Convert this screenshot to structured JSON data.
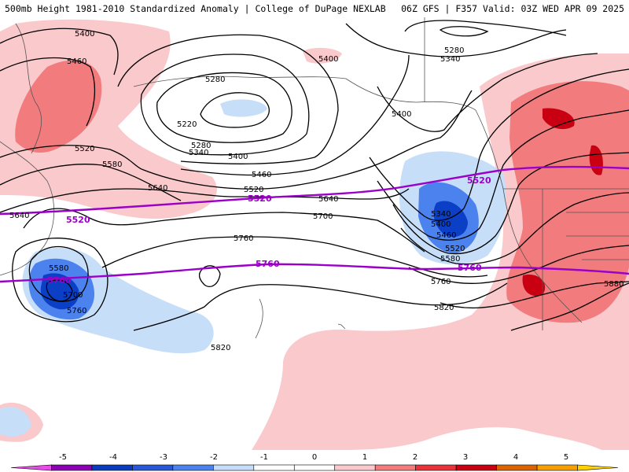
{
  "header": {
    "left": "500mb Height 1981-2010 Standardized Anomaly | College of DuPage NEXLAB",
    "right": "06Z GFS | F357 Valid: 03Z WED APR 09 2025"
  },
  "colors": {
    "background": "#ffffff",
    "contour": "#000000",
    "highlight_contour": "#9b00c8",
    "coastline": "#555555",
    "anom_pos_1": "#f9c9cc",
    "anom_pos_2": "#f27b7e",
    "anom_pos_3": "#c80012",
    "anom_neg_1": "#c7def9",
    "anom_neg_2": "#4c82ee",
    "anom_neg_3": "#0b3fc6"
  },
  "map": {
    "height_labels": [
      "5400",
      "5460",
      "5520",
      "5580",
      "5640",
      "5640",
      "5280",
      "5220",
      "5280",
      "5340",
      "5400",
      "5400",
      "5460",
      "5520",
      "5640",
      "5700",
      "5760",
      "5820",
      "5280",
      "5340",
      "5400",
      "5340",
      "5400",
      "5460",
      "5520",
      "5580",
      "5760",
      "5820",
      "5880",
      "5580",
      "5700",
      "5760"
    ],
    "highlight_labels": [
      "5520",
      "5520",
      "5520",
      "5760",
      "5760",
      "5760"
    ]
  },
  "colorbar": {
    "ticks": [
      "-5",
      "-4",
      "-3",
      "-2",
      "-1",
      "0",
      "1",
      "2",
      "3",
      "4",
      "5"
    ],
    "colors": [
      "#e64de6",
      "#8c00b4",
      "#0a3cbe",
      "#2858d6",
      "#4c82ee",
      "#c4ddfa",
      "#ffffff",
      "#ffffff",
      "#f9c9cc",
      "#f27b7e",
      "#e8333b",
      "#c80012",
      "#dc6400",
      "#f5a000",
      "#ffd200"
    ]
  }
}
